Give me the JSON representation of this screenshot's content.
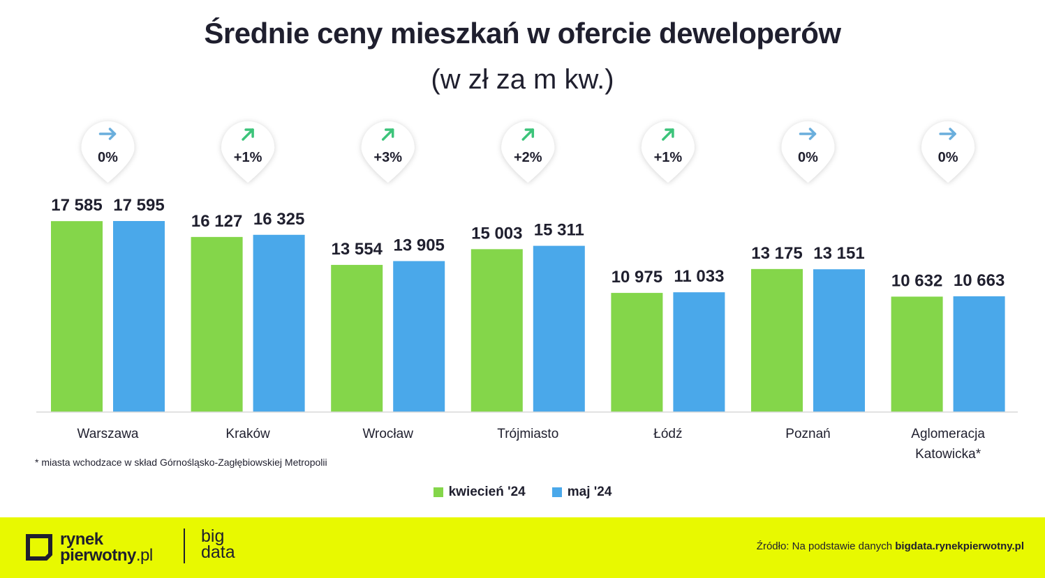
{
  "title": "Średnie ceny mieszkań w ofercie deweloperów",
  "subtitle": "(w zł za m kw.)",
  "footnote": "* miasta wchodzace w skład Górnośląsko-Zagłębiowskiej Metropolii",
  "source_prefix": "Źródło: Na podstawie danych",
  "source_link": "bigdata.rynekpierwotny.pl",
  "brand": {
    "line1": "rynek",
    "line2": "pierwotny",
    "line2_suffix": ".pl",
    "secondary_line1": "big",
    "secondary_line2": "data"
  },
  "colors": {
    "april": "#84d64a",
    "may": "#4aa8ea",
    "arrow_up": "#3cc47a",
    "arrow_flat": "#6aaedc",
    "footer_bg": "#e8f900"
  },
  "chart_data": {
    "type": "bar",
    "title": "Średnie ceny mieszkań w ofercie deweloperów",
    "subtitle": "(w zł za m kw.)",
    "categories": [
      "Warszawa",
      "Kraków",
      "Wrocław",
      "Trójmiasto",
      "Łódź",
      "Poznań",
      "Aglomeracja\nKatowicka*"
    ],
    "series": [
      {
        "name": "kwiecień '24",
        "color": "#84d64a",
        "values": [
          17585,
          16127,
          13554,
          15003,
          10975,
          13175,
          10632
        ],
        "labels": [
          "17 585",
          "16 127",
          "13 554",
          "15 003",
          "10 975",
          "13 175",
          "10 632"
        ]
      },
      {
        "name": "maj '24",
        "color": "#4aa8ea",
        "values": [
          17595,
          16325,
          13905,
          15311,
          11033,
          13151,
          10663
        ],
        "labels": [
          "17 595",
          "16 325",
          "13 905",
          "15 311",
          "11 033",
          "13 151",
          "10 663"
        ]
      }
    ],
    "changes": [
      {
        "label": "0%",
        "direction": "flat"
      },
      {
        "label": "+1%",
        "direction": "up"
      },
      {
        "label": "+3%",
        "direction": "up"
      },
      {
        "label": "+2%",
        "direction": "up"
      },
      {
        "label": "+1%",
        "direction": "up"
      },
      {
        "label": "0%",
        "direction": "flat"
      },
      {
        "label": "0%",
        "direction": "flat"
      }
    ],
    "ylim": [
      0,
      17595
    ],
    "grid": false,
    "legend_position": "bottom-center"
  }
}
